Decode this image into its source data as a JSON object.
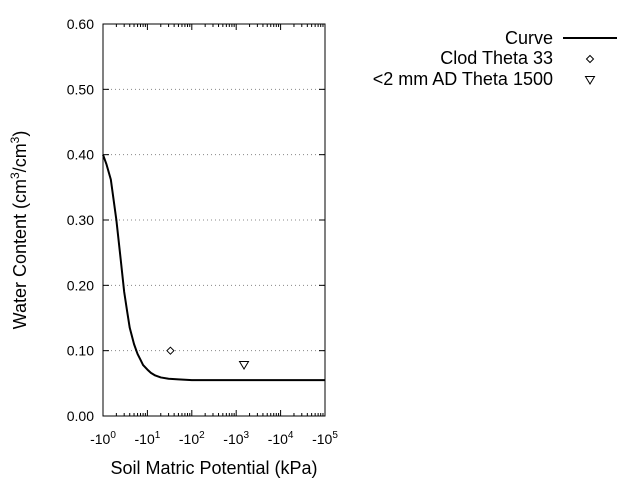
{
  "chart_data": {
    "type": "line",
    "xlabel": "Soil Matric Potential (kPa)",
    "ylabel": "Water Content (cm³/cm³)",
    "ylabel_parts": {
      "pre": "Water Content (cm",
      "sup1": "3",
      "mid": "/cm",
      "sup2": "3",
      "post": ")"
    },
    "x_scale": "log",
    "xlim": [
      1,
      100000
    ],
    "ylim": [
      0,
      0.6
    ],
    "grid": "horizontal-dotted",
    "legend_placement": "right",
    "y_ticks": [
      "0.00",
      "0.10",
      "0.20",
      "0.30",
      "0.40",
      "0.50",
      "0.60"
    ],
    "y_tick_values": [
      0,
      0.1,
      0.2,
      0.3,
      0.4,
      0.5,
      0.6
    ],
    "x_ticks": [
      {
        "value": 1,
        "base": "-10",
        "exp": "0"
      },
      {
        "value": 10,
        "base": "-10",
        "exp": "1"
      },
      {
        "value": 100,
        "base": "-10",
        "exp": "2"
      },
      {
        "value": 1000,
        "base": "-10",
        "exp": "3"
      },
      {
        "value": 10000,
        "base": "-10",
        "exp": "4"
      },
      {
        "value": 100000,
        "base": "-10",
        "exp": "5"
      }
    ],
    "series": [
      {
        "name": "Curve",
        "kind": "line",
        "x": [
          1,
          1.2,
          1.5,
          2,
          2.5,
          3,
          3.5,
          4,
          5,
          6,
          7,
          8,
          10,
          12,
          15,
          20,
          30,
          50,
          100,
          300,
          1000,
          10000,
          100000
        ],
        "y": [
          0.4,
          0.385,
          0.362,
          0.3,
          0.24,
          0.19,
          0.16,
          0.135,
          0.11,
          0.095,
          0.086,
          0.078,
          0.071,
          0.066,
          0.062,
          0.059,
          0.057,
          0.056,
          0.055,
          0.055,
          0.055,
          0.055,
          0.055
        ]
      },
      {
        "name": "Clod Theta 33",
        "kind": "point",
        "marker": "diamond",
        "x": [
          33
        ],
        "y": [
          0.1
        ]
      },
      {
        "name": "<2 mm AD Theta 1500",
        "kind": "point",
        "marker": "triangle-down",
        "x": [
          1500
        ],
        "y": [
          0.078
        ]
      }
    ]
  }
}
